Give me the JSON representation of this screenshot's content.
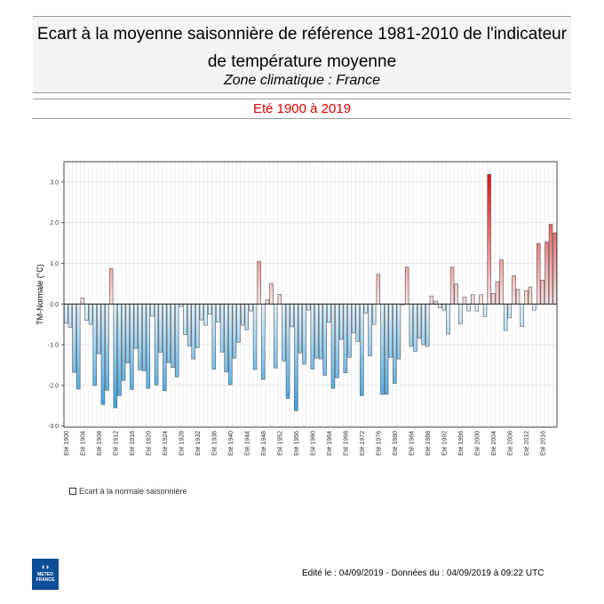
{
  "header": {
    "title_line1": "Ecart à la moyenne saisonnière de référence 1981-2010 de l'indicateur",
    "title_line2": "de température moyenne",
    "zone": "Zone climatique : France"
  },
  "subtitle": "Eté 1900 à 2019",
  "legend": {
    "label": "Ecart à la normale saisonnière"
  },
  "footer": {
    "text": "Edité le : 04/09/2019 - Données du : 04/09/2019 à 09:22 UTC",
    "logo_line1": "METEO",
    "logo_line2": "FRANCE"
  },
  "colors": {
    "positive_dark": "#e01010",
    "positive_light": "#fde4e4",
    "negative_dark": "#2a9ee8",
    "negative_light": "#e3f4fd",
    "title_red": "#e00000"
  },
  "chart_data": {
    "type": "bar",
    "title": "Eté 1900 à 2019",
    "xlabel": "",
    "ylabel": "TM-Normale (°C)",
    "ylim": [
      -3.0,
      3.0
    ],
    "yticks": [
      "3.0",
      "2.0",
      "1.0",
      "0.0",
      "-1.0",
      "-2.0",
      "-3.0"
    ],
    "ytick_values": [
      3,
      2,
      1,
      0,
      -1,
      -2,
      -3
    ],
    "x_start": 1900,
    "tick_prefix": "Eté",
    "tick_every": 4,
    "grid": true,
    "legend_placement": "bottom-left",
    "values": [
      -0.47,
      -0.57,
      -1.68,
      -2.09,
      0.15,
      -0.4,
      -0.5,
      -2.0,
      -1.22,
      -2.47,
      -2.12,
      0.87,
      -2.55,
      -2.25,
      -1.88,
      -1.45,
      -2.1,
      -1.09,
      -1.62,
      -1.64,
      -2.07,
      -0.3,
      -1.99,
      -1.19,
      -2.13,
      -1.44,
      -1.56,
      -1.79,
      -0.06,
      -0.75,
      -1.03,
      -1.35,
      -1.07,
      -0.39,
      -0.52,
      -0.25,
      -1.6,
      -0.44,
      -1.18,
      -1.67,
      -1.98,
      -1.33,
      -0.94,
      -0.52,
      -0.63,
      -0.17,
      -1.61,
      1.05,
      -1.85,
      0.1,
      0.5,
      -1.57,
      0.24,
      -1.4,
      -2.32,
      -0.56,
      -2.62,
      -1.2,
      -1.48,
      -0.15,
      -1.6,
      -1.33,
      -1.35,
      -1.75,
      -0.45,
      -2.07,
      -1.81,
      -0.87,
      -1.69,
      -1.31,
      -0.71,
      -0.92,
      -2.25,
      -0.22,
      -1.27,
      -0.5,
      0.73,
      -2.22,
      -2.22,
      -1.31,
      -1.95,
      -1.35,
      -0.02,
      0.91,
      -1.04,
      -1.16,
      -0.84,
      -1.0,
      -1.04,
      0.2,
      0.07,
      -0.09,
      -0.15,
      -0.74,
      0.91,
      0.5,
      -0.49,
      0.17,
      -0.17,
      0.23,
      -0.17,
      0.23,
      -0.31,
      3.19,
      0.26,
      0.55,
      1.09,
      -0.65,
      -0.34,
      0.7,
      0.36,
      -0.55,
      0.33,
      0.42,
      -0.15,
      1.49,
      0.59,
      1.53,
      1.96,
      1.75
    ]
  }
}
